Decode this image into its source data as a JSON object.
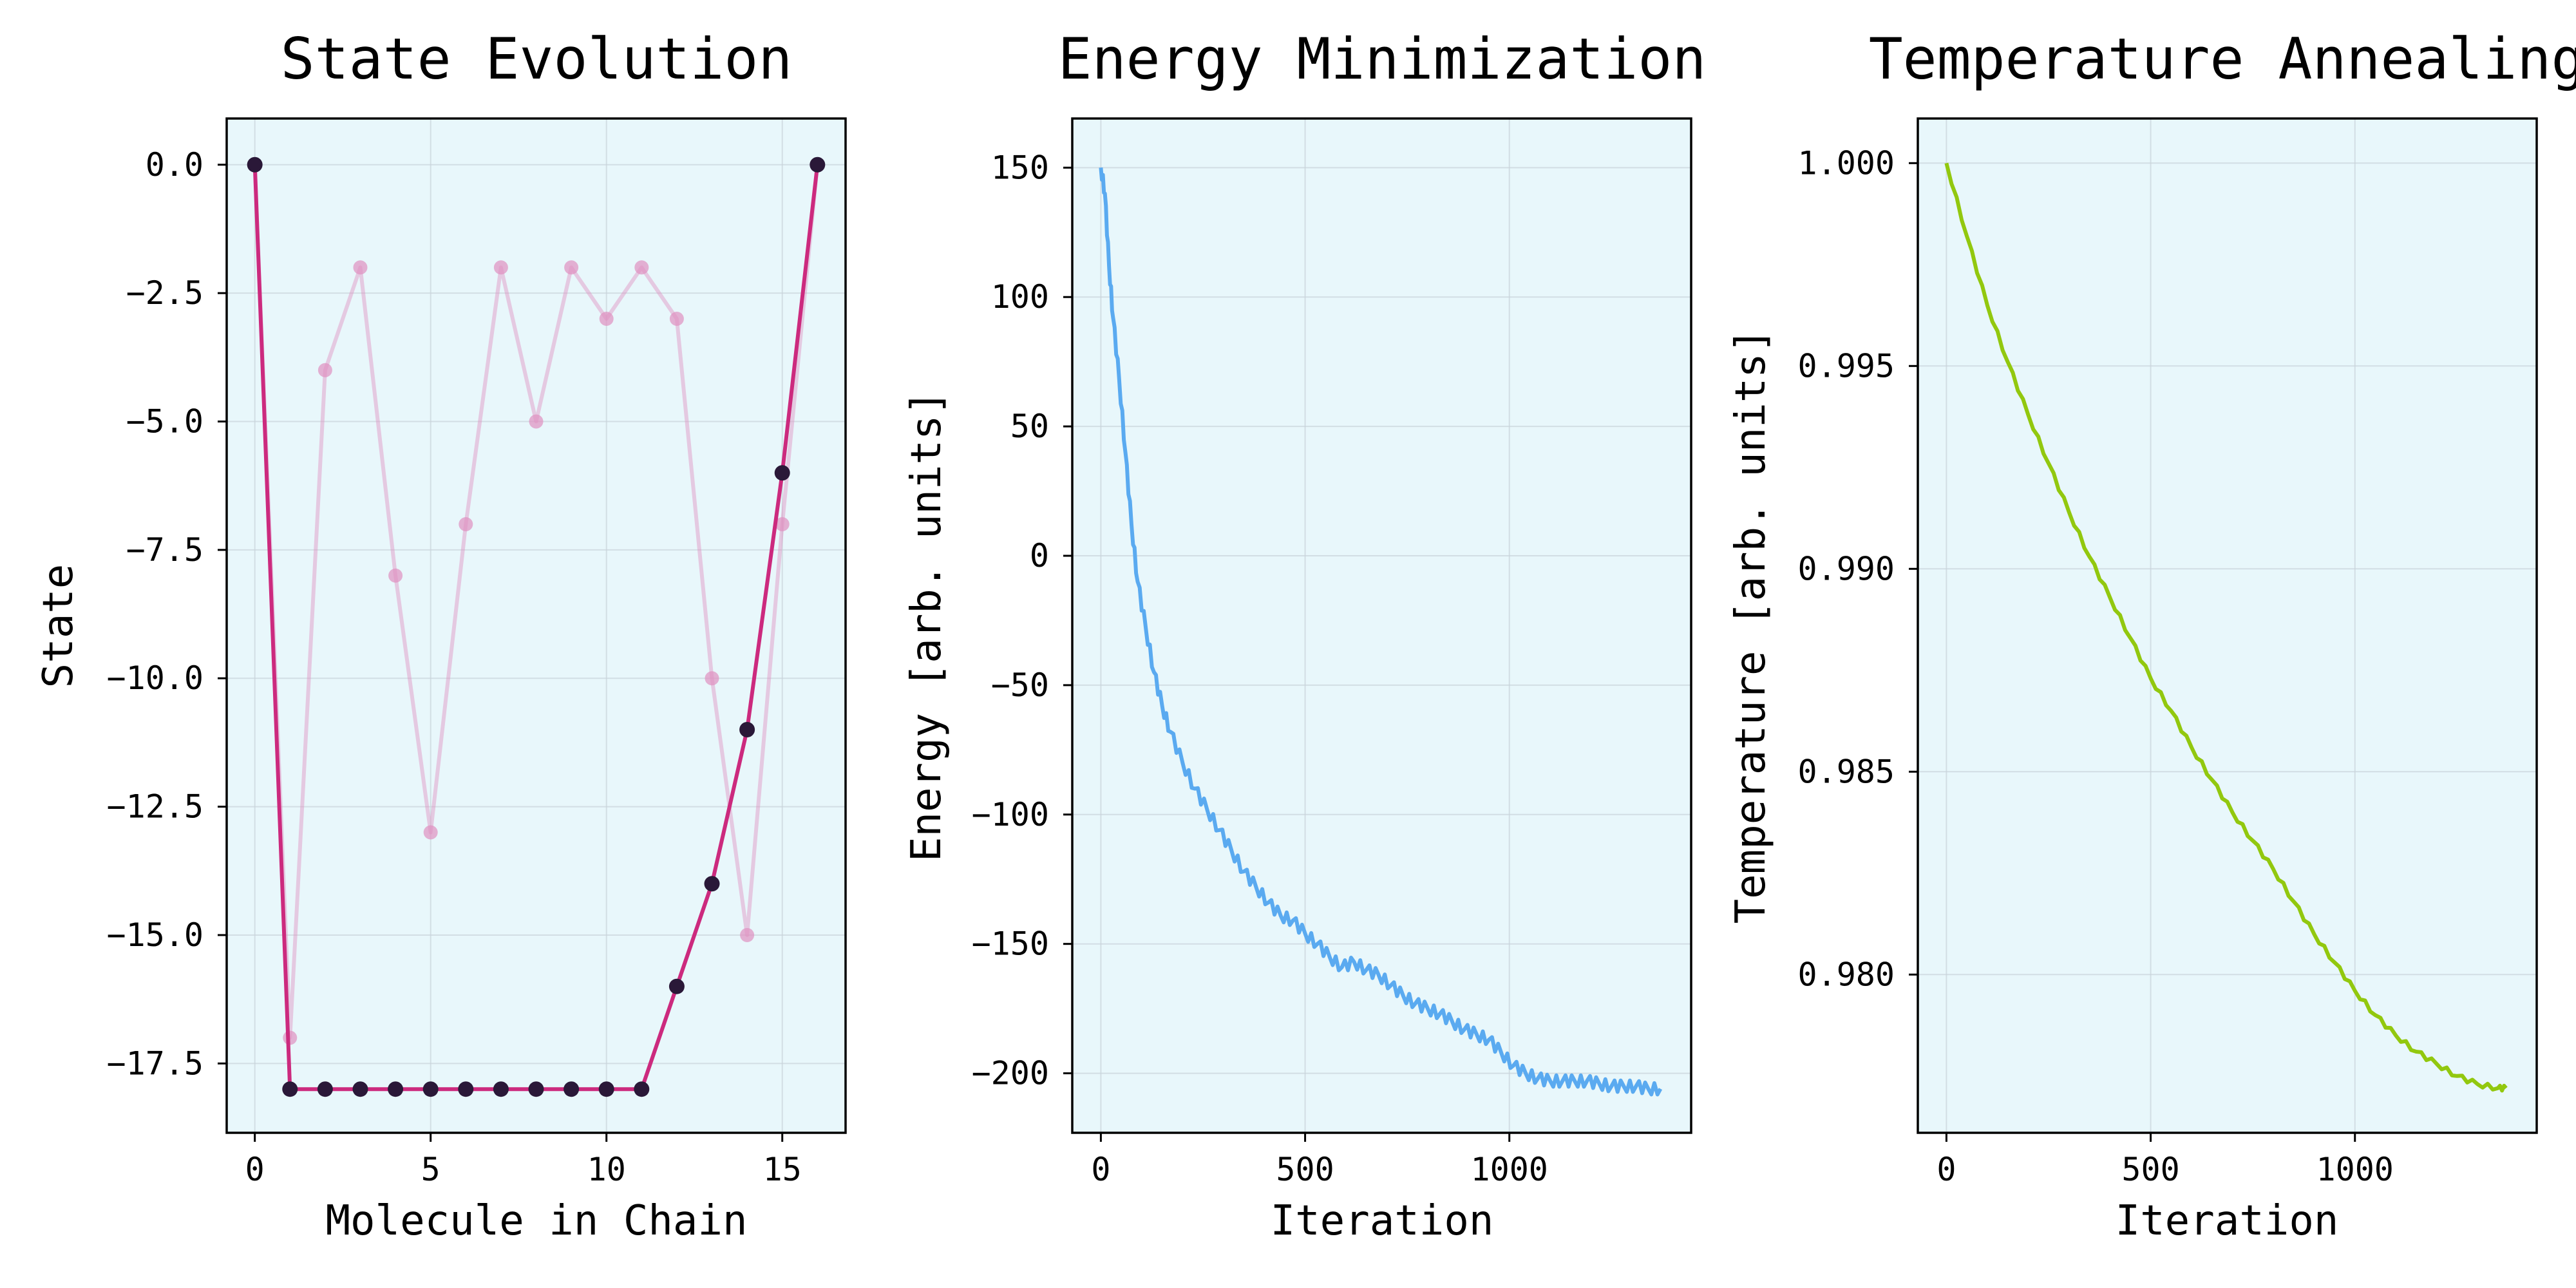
{
  "colors": {
    "panel_bg": "#e8f7fb",
    "grid": "#c9d4db",
    "state_final": "#cc2a7e",
    "state_final_marker": "#2a1838",
    "state_initial": "#e090c0",
    "energy": "#5aaaf0",
    "temperature": "#92c80e"
  },
  "chart_data": [
    {
      "type": "line",
      "title": "State Evolution",
      "xlabel": "Molecule in Chain",
      "ylabel": "State",
      "xlim": [
        -0.8,
        16.8
      ],
      "ylim": [
        -18.85,
        0.9
      ],
      "xticks": [
        0,
        5,
        10,
        15
      ],
      "xtick_labels": [
        "0",
        "5",
        "10",
        "15"
      ],
      "yticks": [
        0,
        -2.5,
        -5,
        -7.5,
        -10,
        -12.5,
        -15,
        -17.5
      ],
      "ytick_labels": [
        "0.0",
        "−2.5",
        "−5.0",
        "−7.5",
        "−10.0",
        "−12.5",
        "−15.0",
        "−17.5"
      ],
      "grid": true,
      "series": [
        {
          "x": [
            0,
            1,
            2,
            3,
            4,
            5,
            6,
            7,
            8,
            9,
            10,
            11,
            12,
            13,
            14,
            15,
            16
          ],
          "values": [
            0,
            -17,
            -4,
            -2,
            -8,
            -13,
            -7,
            -2,
            -5,
            -2,
            -3,
            -2,
            -3,
            -10,
            -15,
            -7,
            0
          ]
        },
        {
          "x": [
            0,
            1,
            2,
            3,
            4,
            5,
            6,
            7,
            8,
            9,
            10,
            11,
            12,
            13,
            14,
            15,
            16
          ],
          "values": [
            0,
            -18,
            -18,
            -18,
            -18,
            -18,
            -18,
            -18,
            -18,
            -18,
            -18,
            -18,
            -16,
            -14,
            -11,
            -6,
            0
          ]
        }
      ]
    },
    {
      "type": "line",
      "title": "Energy Minimization",
      "xlabel": "Iteration",
      "ylabel": "Energy [arb. units]",
      "xlim": [
        -70,
        1445
      ],
      "ylim": [
        -223,
        169
      ],
      "xticks": [
        0,
        500,
        1000
      ],
      "xtick_labels": [
        "0",
        "500",
        "1000"
      ],
      "yticks": [
        150,
        100,
        50,
        0,
        -50,
        -100,
        -150,
        -200
      ],
      "ytick_labels": [
        "150",
        "100",
        "50",
        "0",
        "−50",
        "−100",
        "−150",
        "−200"
      ],
      "grid": true,
      "series": [
        {
          "x": [
            0,
            10,
            20,
            30,
            45,
            60,
            75,
            90,
            110,
            130,
            150,
            170,
            200,
            230,
            260,
            290,
            320,
            350,
            380,
            410,
            440,
            470,
            500,
            530,
            560,
            590,
            620,
            650,
            680,
            710,
            740,
            770,
            800,
            830,
            860,
            890,
            920,
            950,
            980,
            1010,
            1040,
            1070,
            1100,
            1130,
            1160,
            1190,
            1220,
            1250,
            1280,
            1310,
            1340,
            1370
          ],
          "values": [
            150,
            140,
            112,
            92,
            68,
            40,
            12,
            -10,
            -28,
            -45,
            -58,
            -68,
            -80,
            -90,
            -98,
            -106,
            -114,
            -122,
            -128,
            -134,
            -139,
            -141,
            -146,
            -150,
            -155,
            -159,
            -157,
            -160,
            -162,
            -166,
            -170,
            -173,
            -175,
            -177,
            -180,
            -183,
            -185,
            -187,
            -192,
            -197,
            -200,
            -202,
            -203,
            -203,
            -203,
            -203,
            -204,
            -205,
            -205,
            -205,
            -206,
            -206
          ]
        }
      ]
    },
    {
      "type": "line",
      "title": "Temperature Annealing",
      "xlabel": "Iteration",
      "ylabel": "Temperature [arb. units]",
      "xlim": [
        -70,
        1445
      ],
      "ylim": [
        0.9761,
        1.0011
      ],
      "xticks": [
        0,
        500,
        1000
      ],
      "xtick_labels": [
        "0",
        "500",
        "1000"
      ],
      "yticks": [
        1.0,
        0.995,
        0.99,
        0.985,
        0.98
      ],
      "ytick_labels": [
        "1.000",
        "0.995",
        "0.990",
        "0.985",
        "0.980"
      ],
      "grid": true,
      "series": [
        {
          "x": [
            0,
            50,
            100,
            150,
            200,
            250,
            300,
            350,
            400,
            450,
            500,
            550,
            600,
            650,
            700,
            750,
            800,
            850,
            900,
            950,
            1000,
            1050,
            1100,
            1150,
            1200,
            1250,
            1300,
            1350,
            1370
          ],
          "values": [
            1.0,
            0.9982,
            0.9965,
            0.9951,
            0.9938,
            0.9926,
            0.9914,
            0.9903,
            0.9893,
            0.9883,
            0.9873,
            0.9865,
            0.9856,
            0.9848,
            0.984,
            0.9833,
            0.9826,
            0.9818,
            0.981,
            0.9803,
            0.9796,
            0.979,
            0.9785,
            0.9781,
            0.9778,
            0.9775,
            0.9773,
            0.9772,
            0.9772
          ]
        }
      ]
    }
  ]
}
